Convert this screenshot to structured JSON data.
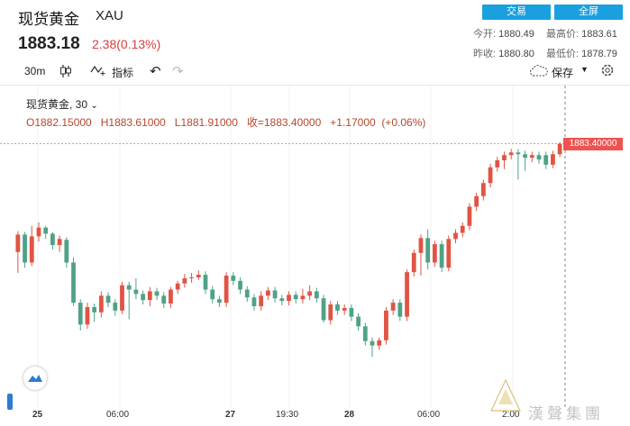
{
  "header": {
    "title": "现货黄金",
    "symbol": "XAU",
    "price": "1883.18",
    "change": "2.38(0.13%)",
    "trade_label": "交易",
    "fullscreen_label": "全屏",
    "stats": {
      "open_label": "今开:",
      "open": "1880.49",
      "high_label": "最高价:",
      "high": "1883.61",
      "prev_label": "昨收:",
      "prev": "1880.80",
      "low_label": "最低价:",
      "low": "1878.79"
    }
  },
  "toolbar": {
    "interval": "30m",
    "indicators_label": "指标",
    "save_label": "保存"
  },
  "legend": {
    "name": "现货黄金, 30",
    "ohlc": "O1882.15000   H1883.61000   L1881.91000   收=1883.40000   +1.17000  (+0.06%)",
    "last_price_tag": "1883.40000"
  },
  "colors": {
    "up": "#e05444",
    "down": "#4fa286",
    "accent": "#1aa0de",
    "tag": "#ef5350"
  },
  "chart_data": {
    "type": "candlestick",
    "x_ticks": [
      "25",
      "06:00",
      "27",
      "19:30",
      "28",
      "06:00",
      "2:00"
    ],
    "candles": [
      [
        1871.0,
        1873.0,
        1868.6,
        1873.4
      ],
      [
        1873.0,
        1869.8,
        1869.2,
        1873.3
      ],
      [
        1869.8,
        1872.8,
        1869.4,
        1874.0
      ],
      [
        1872.8,
        1873.8,
        1872.2,
        1874.4
      ],
      [
        1873.8,
        1873.1,
        1872.5,
        1874.0
      ],
      [
        1873.1,
        1871.8,
        1871.3,
        1873.3
      ],
      [
        1871.8,
        1872.5,
        1871.0,
        1872.9
      ],
      [
        1872.4,
        1869.8,
        1869.2,
        1872.7
      ],
      [
        1869.8,
        1865.2,
        1864.8,
        1870.4
      ],
      [
        1865.2,
        1862.7,
        1862.0,
        1865.6
      ],
      [
        1862.7,
        1864.7,
        1862.2,
        1865.2
      ],
      [
        1864.7,
        1864.1,
        1863.0,
        1865.1
      ],
      [
        1864.1,
        1866.0,
        1863.5,
        1866.5
      ],
      [
        1866.0,
        1865.2,
        1864.7,
        1866.4
      ],
      [
        1865.2,
        1864.3,
        1863.7,
        1865.6
      ],
      [
        1864.3,
        1867.2,
        1863.9,
        1867.6
      ],
      [
        1867.2,
        1866.7,
        1863.3,
        1867.6
      ],
      [
        1866.7,
        1866.2,
        1865.6,
        1868.0
      ],
      [
        1866.2,
        1865.5,
        1865.0,
        1866.6
      ],
      [
        1865.5,
        1866.5,
        1864.8,
        1867.0
      ],
      [
        1866.5,
        1866.0,
        1865.5,
        1866.9
      ],
      [
        1866.0,
        1865.1,
        1864.6,
        1866.4
      ],
      [
        1865.1,
        1866.7,
        1864.6,
        1867.0
      ],
      [
        1866.7,
        1867.4,
        1866.2,
        1867.7
      ],
      [
        1867.4,
        1868.0,
        1866.9,
        1868.5
      ],
      [
        1868.0,
        1868.1,
        1867.5,
        1868.6
      ],
      [
        1868.1,
        1868.4,
        1867.8,
        1868.9
      ],
      [
        1868.4,
        1866.7,
        1866.2,
        1868.8
      ],
      [
        1866.7,
        1865.6,
        1865.1,
        1867.1
      ],
      [
        1865.6,
        1865.2,
        1864.7,
        1866.0
      ],
      [
        1865.2,
        1868.3,
        1864.7,
        1868.7
      ],
      [
        1868.3,
        1867.7,
        1867.2,
        1868.7
      ],
      [
        1867.7,
        1866.7,
        1866.2,
        1868.1
      ],
      [
        1866.7,
        1865.8,
        1865.3,
        1867.1
      ],
      [
        1865.8,
        1864.8,
        1864.3,
        1866.2
      ],
      [
        1864.8,
        1866.0,
        1864.3,
        1866.5
      ],
      [
        1866.0,
        1866.6,
        1865.5,
        1867.0
      ],
      [
        1866.6,
        1865.7,
        1865.2,
        1867.0
      ],
      [
        1865.7,
        1865.4,
        1864.9,
        1866.1
      ],
      [
        1865.4,
        1866.1,
        1864.9,
        1866.5
      ],
      [
        1866.1,
        1865.6,
        1865.1,
        1866.5
      ],
      [
        1865.6,
        1866.0,
        1865.1,
        1866.8
      ],
      [
        1866.0,
        1866.5,
        1865.5,
        1867.2
      ],
      [
        1866.5,
        1865.7,
        1865.2,
        1866.9
      ],
      [
        1865.7,
        1863.2,
        1862.9,
        1866.1
      ],
      [
        1863.2,
        1865.0,
        1862.7,
        1865.4
      ],
      [
        1865.0,
        1864.3,
        1863.8,
        1865.4
      ],
      [
        1864.3,
        1864.6,
        1863.8,
        1865.0
      ],
      [
        1864.6,
        1863.6,
        1863.1,
        1865.0
      ],
      [
        1863.6,
        1862.5,
        1862.0,
        1864.0
      ],
      [
        1862.5,
        1860.8,
        1860.3,
        1862.9
      ],
      [
        1860.8,
        1860.3,
        1859.0,
        1861.2
      ],
      [
        1860.3,
        1860.9,
        1859.8,
        1861.2
      ],
      [
        1860.9,
        1864.3,
        1860.4,
        1864.7
      ],
      [
        1864.3,
        1865.2,
        1863.8,
        1865.6
      ],
      [
        1865.2,
        1863.6,
        1863.1,
        1865.6
      ],
      [
        1863.6,
        1868.7,
        1863.1,
        1869.0
      ],
      [
        1868.7,
        1870.9,
        1868.2,
        1871.3
      ],
      [
        1870.9,
        1872.6,
        1868.3,
        1873.0
      ],
      [
        1872.6,
        1869.8,
        1869.0,
        1873.6
      ],
      [
        1869.8,
        1871.9,
        1869.3,
        1872.3
      ],
      [
        1871.9,
        1869.2,
        1868.7,
        1872.3
      ],
      [
        1869.2,
        1872.5,
        1868.8,
        1872.9
      ],
      [
        1872.5,
        1873.2,
        1872.0,
        1873.6
      ],
      [
        1873.2,
        1874.0,
        1872.7,
        1874.4
      ],
      [
        1874.0,
        1876.2,
        1873.5,
        1876.6
      ],
      [
        1876.2,
        1877.4,
        1875.7,
        1877.8
      ],
      [
        1877.4,
        1878.9,
        1876.9,
        1879.3
      ],
      [
        1878.9,
        1880.7,
        1878.4,
        1881.1
      ],
      [
        1880.7,
        1881.5,
        1880.2,
        1881.9
      ],
      [
        1881.5,
        1882.1,
        1880.5,
        1882.5
      ],
      [
        1882.1,
        1882.4,
        1881.6,
        1882.8
      ],
      [
        1882.4,
        1882.2,
        1879.3,
        1882.8
      ],
      [
        1882.2,
        1881.8,
        1880.3,
        1882.6
      ],
      [
        1881.8,
        1882.1,
        1881.3,
        1882.5
      ],
      [
        1882.1,
        1881.6,
        1881.1,
        1882.5
      ],
      [
        1882.1,
        1881.0,
        1880.5,
        1882.5
      ],
      [
        1881.0,
        1882.2,
        1880.6,
        1882.6
      ],
      [
        1882.2,
        1883.4,
        1881.9,
        1883.6
      ]
    ],
    "y_range": [
      1855.0,
      1888.0
    ]
  }
}
